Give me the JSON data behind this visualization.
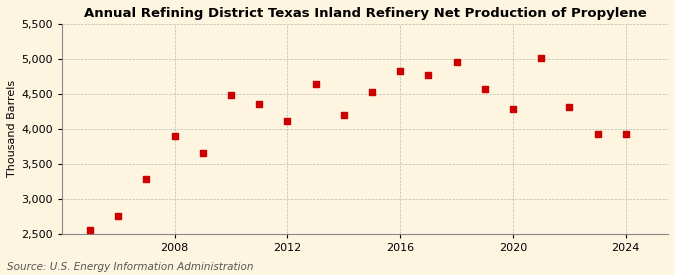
{
  "title": "Annual Refining District Texas Inland Refinery Net Production of Propylene",
  "ylabel": "Thousand Barrels",
  "source": "Source: U.S. Energy Information Administration",
  "background_color": "#fdf5e0",
  "marker_color": "#cc0000",
  "years": [
    2005,
    2006,
    2007,
    2008,
    2009,
    2010,
    2011,
    2012,
    2013,
    2014,
    2015,
    2016,
    2017,
    2018,
    2019,
    2020,
    2021,
    2022,
    2023,
    2024
  ],
  "values": [
    2560,
    2760,
    3280,
    3900,
    3660,
    4480,
    4350,
    4110,
    4640,
    4200,
    4530,
    4820,
    4770,
    4950,
    4570,
    4280,
    5010,
    4310,
    3920,
    3920
  ],
  "ylim": [
    2500,
    5500
  ],
  "yticks": [
    2500,
    3000,
    3500,
    4000,
    4500,
    5000,
    5500
  ],
  "xtick_years": [
    2008,
    2012,
    2016,
    2020,
    2024
  ],
  "xlim": [
    2004.0,
    2025.5
  ],
  "grid_color": "#aaaaaa",
  "title_fontsize": 9.5,
  "label_fontsize": 8,
  "tick_fontsize": 8,
  "source_fontsize": 7.5
}
